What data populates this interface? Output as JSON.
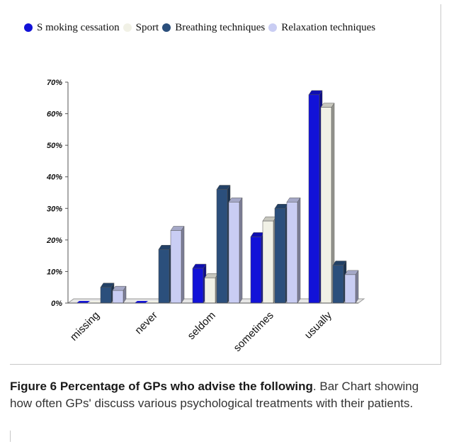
{
  "legend": {
    "items": [
      {
        "label": "S moking cessation",
        "color": "#1212d8"
      },
      {
        "label": "Sport",
        "color": "#f1f1e6"
      },
      {
        "label": "Breathing techniques",
        "color": "#2b4f7c"
      },
      {
        "label": "Relaxation techniques",
        "color": "#c9cdf3"
      }
    ]
  },
  "caption": {
    "title": "Figure 6 Percentage of GPs who advise the following",
    "text": ". Bar Chart showing how often GPs' discuss various psychological treatments with their patients."
  },
  "chart_data": {
    "type": "bar",
    "categories": [
      "missing",
      "never",
      "seldom",
      "sometimes",
      "usually"
    ],
    "series": [
      {
        "name": "S moking cessation",
        "values": [
          0,
          0,
          11,
          21,
          66
        ],
        "color": "#1212d8"
      },
      {
        "name": "Sport",
        "values": [
          0,
          0,
          8,
          26,
          62
        ],
        "color": "#f1f1e6"
      },
      {
        "name": "Breathing techniques",
        "values": [
          5,
          17,
          36,
          30,
          12
        ],
        "color": "#2b4f7c"
      },
      {
        "name": "Relaxation techniques",
        "values": [
          4,
          23,
          32,
          32,
          9
        ],
        "color": "#c9cdf3"
      }
    ],
    "y_ticks": [
      "0%",
      "10%",
      "20%",
      "30%",
      "40%",
      "50%",
      "60%",
      "70%"
    ],
    "ylim": [
      0,
      70
    ],
    "three_d": true,
    "grid": false,
    "legend_position": "top",
    "title": "",
    "xlabel": "",
    "ylabel": ""
  }
}
